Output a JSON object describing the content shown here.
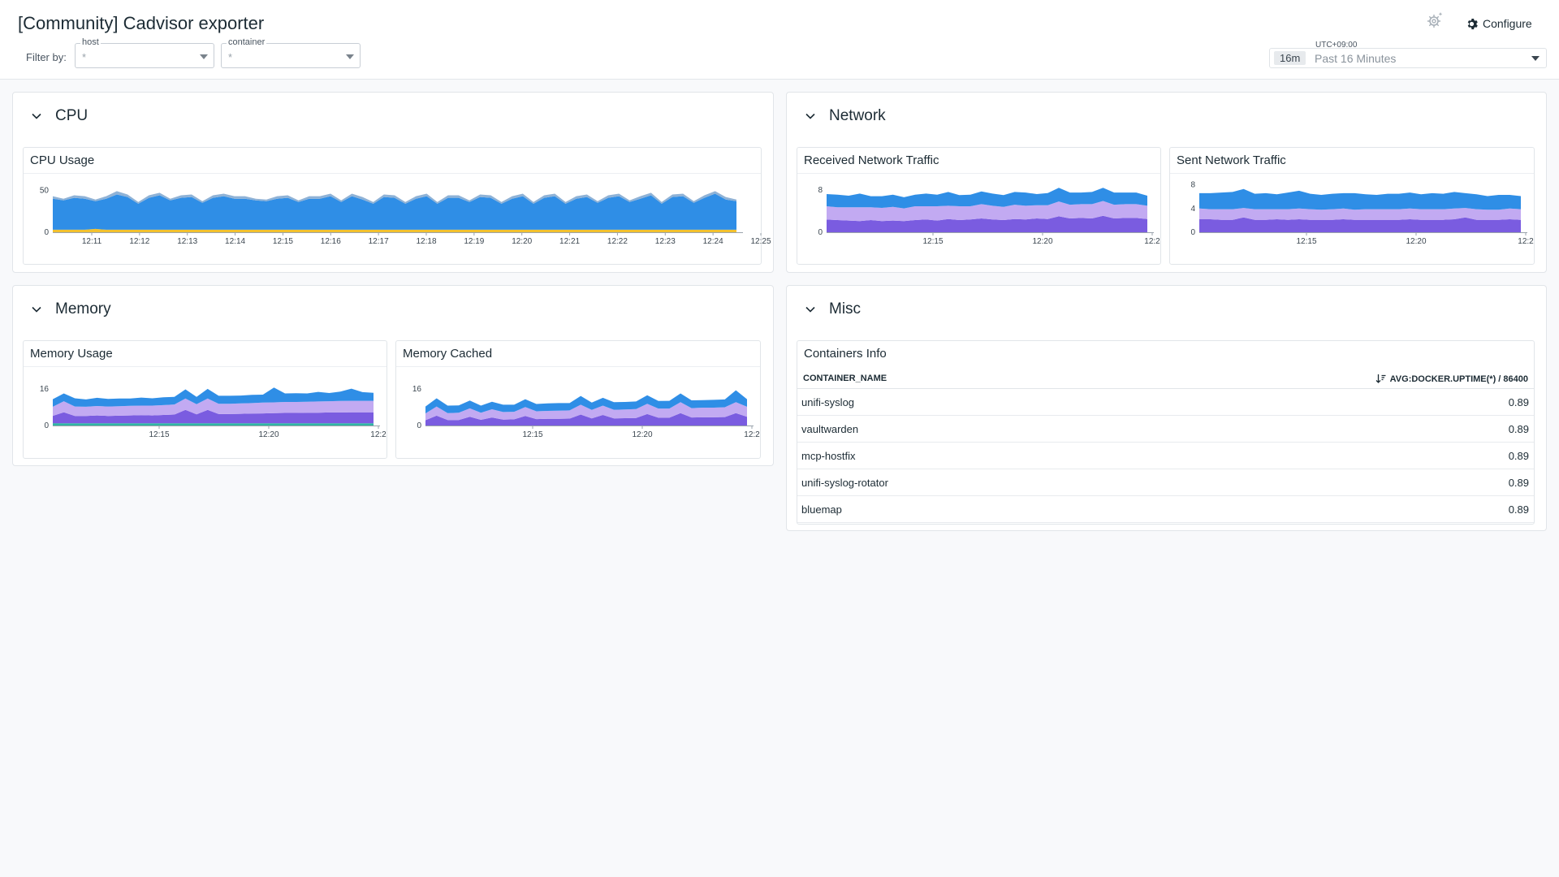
{
  "dashboard": {
    "title": "[Community] Cadvisor exporter"
  },
  "filters": {
    "label": "Filter by:",
    "host": {
      "name": "host",
      "value": "*"
    },
    "container": {
      "name": "container",
      "value": "*"
    }
  },
  "header": {
    "configure_label": "Configure",
    "settings_icon": "gear-icon"
  },
  "timepicker": {
    "timezone": "UTC+09:00",
    "badge": "16m",
    "label": "Past 16 Minutes"
  },
  "groups": {
    "cpu": {
      "title": "CPU"
    },
    "network": {
      "title": "Network"
    },
    "memory": {
      "title": "Memory"
    },
    "misc": {
      "title": "Misc"
    }
  },
  "widgets": {
    "cpu_usage": {
      "title": "CPU Usage"
    },
    "received": {
      "title": "Received Network Traffic"
    },
    "sent": {
      "title": "Sent Network Traffic"
    },
    "mem_usage": {
      "title": "Memory Usage"
    },
    "mem_cached": {
      "title": "Memory Cached"
    },
    "containers": {
      "title": "Containers Info",
      "col_name": "CONTAINER_NAME",
      "col_value": "AVG:DOCKER.UPTIME(*) / 86400",
      "rows": [
        {
          "name": "unifi-syslog",
          "value": "0.89"
        },
        {
          "name": "vaultwarden",
          "value": "0.89"
        },
        {
          "name": "mcp-hostfix",
          "value": "0.89"
        },
        {
          "name": "unifi-syslog-rotator",
          "value": "0.89"
        },
        {
          "name": "bluemap",
          "value": "0.89"
        }
      ]
    }
  },
  "colors": {
    "blue": "#2f8ee6",
    "lavender": "#c2aaf2",
    "purple": "#7a5ce0",
    "yellow": "#f2c12e",
    "teal": "#2fb7a3"
  },
  "chart_data": [
    {
      "id": "cpu_usage",
      "type": "area",
      "title": "CPU Usage",
      "x_ticks": [
        "12:11",
        "12:12",
        "12:13",
        "12:14",
        "12:15",
        "12:16",
        "12:17",
        "12:18",
        "12:19",
        "12:20",
        "12:21",
        "12:22",
        "12:23",
        "12:24",
        "12:25"
      ],
      "y_ticks": [
        "0",
        "50"
      ],
      "ylim": [
        0,
        60
      ],
      "series": [
        {
          "color": "#f2c12e",
          "values": [
            3,
            3,
            3,
            3,
            4,
            3,
            3,
            3,
            3,
            3,
            3,
            3,
            3,
            3,
            3,
            3,
            3,
            3,
            3,
            3,
            3,
            3,
            3,
            3,
            3,
            3,
            3,
            3,
            3,
            3,
            3,
            3,
            3,
            3,
            3,
            3,
            3,
            3,
            3,
            3,
            3,
            3,
            3,
            3,
            3,
            3,
            3,
            3,
            3,
            3,
            3,
            3,
            3,
            3,
            3,
            3,
            3,
            3,
            3,
            3,
            3,
            3,
            3,
            3,
            3
          ]
        },
        {
          "color": "#2f8ee6",
          "values": [
            37,
            35,
            38,
            37,
            33,
            37,
            42,
            39,
            31,
            38,
            41,
            35,
            38,
            39,
            32,
            38,
            40,
            37,
            37,
            35,
            34,
            37,
            38,
            33,
            37,
            37,
            40,
            33,
            40,
            36,
            31,
            39,
            38,
            31,
            37,
            40,
            31,
            38,
            38,
            33,
            39,
            38,
            31,
            37,
            40,
            31,
            38,
            40,
            31,
            37,
            39,
            32,
            38,
            40,
            33,
            37,
            41,
            31,
            39,
            40,
            32,
            38,
            43,
            36,
            34
          ]
        },
        {
          "color": "#8fb2d6",
          "values": [
            3,
            2,
            3,
            3,
            2,
            3,
            4,
            3,
            2,
            3,
            3,
            2,
            3,
            3,
            2,
            3,
            3,
            3,
            3,
            2,
            2,
            3,
            3,
            2,
            3,
            3,
            3,
            2,
            3,
            3,
            2,
            3,
            3,
            2,
            3,
            3,
            2,
            3,
            3,
            2,
            3,
            3,
            2,
            3,
            3,
            2,
            3,
            3,
            2,
            3,
            3,
            2,
            3,
            3,
            2,
            3,
            3,
            2,
            3,
            3,
            2,
            3,
            3,
            3,
            2
          ]
        }
      ]
    },
    {
      "id": "received",
      "type": "area",
      "title": "Received Network Traffic",
      "x_ticks": [
        "12:15",
        "12:20",
        "12:2"
      ],
      "y_ticks": [
        "0",
        "8"
      ],
      "ylim": [
        0,
        9.5
      ],
      "series": [
        {
          "color": "#7a5ce0",
          "values": [
            2.4,
            2.3,
            2.2,
            2.1,
            2.3,
            2.1,
            2.2,
            2.1,
            2.3,
            2.4,
            2.2,
            2.5,
            2.3,
            2.4,
            2.6,
            2.4,
            2.3,
            2.5,
            2.4,
            2.6,
            2.5,
            3.0,
            2.6,
            2.7,
            2.6,
            3.1,
            2.6,
            2.7,
            2.7,
            2.5
          ]
        },
        {
          "color": "#c2aaf2",
          "values": [
            2.5,
            2.4,
            2.5,
            2.6,
            2.4,
            2.5,
            2.6,
            2.4,
            2.6,
            2.5,
            2.7,
            2.5,
            2.6,
            2.5,
            2.7,
            2.6,
            2.5,
            2.7,
            2.6,
            2.5,
            2.6,
            2.8,
            2.6,
            2.6,
            2.7,
            2.8,
            2.6,
            2.6,
            2.6,
            2.5
          ]
        },
        {
          "color": "#2f8ee6",
          "values": [
            2.3,
            2.4,
            2.2,
            2.6,
            2.1,
            2.2,
            2.3,
            2.1,
            2.2,
            2.4,
            2.2,
            2.6,
            2.1,
            2.2,
            2.4,
            2.3,
            2.2,
            2.4,
            2.5,
            2.1,
            2.3,
            2.6,
            2.3,
            2.2,
            2.3,
            2.5,
            2.3,
            2.2,
            2.2,
            1.9
          ]
        }
      ]
    },
    {
      "id": "sent",
      "type": "area",
      "title": "Sent Network Traffic",
      "x_ticks": [
        "12:15",
        "12:20",
        "12:2"
      ],
      "y_ticks": [
        "0",
        "4",
        "8"
      ],
      "ylim": [
        0,
        8.5
      ],
      "series": [
        {
          "color": "#7a5ce0",
          "values": [
            2.2,
            2.2,
            2.1,
            2.1,
            2.5,
            2.1,
            2.1,
            2.2,
            2.1,
            2.2,
            2.1,
            2.1,
            2.1,
            2.2,
            2.1,
            2.1,
            2.1,
            2.1,
            2.1,
            2.2,
            2.1,
            2.1,
            2.1,
            2.2,
            2.5,
            2.1,
            2.1,
            2.1,
            2.2,
            2.1
          ]
        },
        {
          "color": "#c2aaf2",
          "values": [
            1.8,
            1.7,
            1.8,
            1.8,
            1.6,
            1.8,
            1.8,
            1.7,
            1.8,
            1.8,
            1.8,
            1.7,
            1.8,
            1.8,
            1.7,
            1.8,
            1.8,
            1.8,
            1.8,
            1.8,
            1.8,
            1.8,
            1.8,
            1.8,
            1.6,
            1.8,
            1.7,
            1.7,
            1.8,
            1.8
          ]
        },
        {
          "color": "#2f8ee6",
          "values": [
            2.6,
            2.7,
            2.8,
            2.9,
            3.2,
            2.6,
            2.7,
            2.5,
            2.8,
            3.0,
            2.6,
            2.5,
            2.6,
            2.6,
            2.8,
            2.5,
            2.4,
            2.6,
            2.6,
            2.7,
            2.5,
            2.7,
            2.6,
            2.8,
            2.5,
            2.5,
            2.3,
            2.5,
            2.3,
            2.2
          ]
        }
      ]
    },
    {
      "id": "mem_usage",
      "type": "area",
      "title": "Memory Usage",
      "x_ticks": [
        "12:15",
        "12:20",
        "12:2"
      ],
      "y_ticks": [
        "0",
        "16"
      ],
      "ylim": [
        0,
        22
      ],
      "series": [
        {
          "color": "#2fb7a3",
          "values": [
            1,
            1,
            1,
            1,
            1,
            1,
            1,
            1,
            1,
            1,
            1,
            1,
            1,
            1,
            1,
            1,
            1,
            1,
            1,
            1,
            1,
            1,
            1,
            1,
            1,
            1,
            1,
            1,
            1,
            1
          ]
        },
        {
          "color": "#7a5ce0",
          "values": [
            3.2,
            4.8,
            3.2,
            3.2,
            3.4,
            3.2,
            3.3,
            3.4,
            3.5,
            3.4,
            3.6,
            3.8,
            5.8,
            3.9,
            5.8,
            4.0,
            4.0,
            4.1,
            4.2,
            4.3,
            4.4,
            4.5,
            4.5,
            4.6,
            4.6,
            4.7,
            4.7,
            4.8,
            4.8,
            4.8
          ]
        },
        {
          "color": "#c2aaf2",
          "values": [
            4,
            4.8,
            4.1,
            4,
            4.1,
            4.1,
            4.1,
            4.2,
            4.2,
            4.3,
            4.3,
            4.4,
            5,
            4.4,
            5,
            4.5,
            4.5,
            4.6,
            4.6,
            4.7,
            4.7,
            4.8,
            4.8,
            4.8,
            4.9,
            4.9,
            5,
            5,
            5,
            5
          ]
        },
        {
          "color": "#2f8ee6",
          "values": [
            3.3,
            3.4,
            3.6,
            3.2,
            3.6,
            3.3,
            3.4,
            3.2,
            3.5,
            3.2,
            3.4,
            3.3,
            4,
            3.2,
            4.2,
            3.5,
            3.5,
            3.4,
            3.6,
            3.5,
            6.5,
            3.7,
            3.8,
            3.6,
            4.2,
            3.6,
            4.1,
            5.3,
            3.8,
            3.5
          ]
        }
      ]
    },
    {
      "id": "mem_cached",
      "type": "area",
      "title": "Memory Cached",
      "x_ticks": [
        "12:15",
        "12:20",
        "12:2"
      ],
      "y_ticks": [
        "0",
        "16"
      ],
      "ylim": [
        0,
        22
      ],
      "series": [
        {
          "color": "#7a5ce0",
          "values": [
            2.3,
            4.3,
            2.4,
            2.4,
            3.8,
            2.5,
            3.5,
            2.6,
            2.7,
            4.2,
            2.8,
            2.9,
            2.9,
            3.0,
            4.8,
            3.1,
            4.6,
            3.1,
            3.2,
            3.3,
            5.0,
            3.4,
            3.4,
            5.4,
            3.5,
            3.6,
            3.6,
            3.7,
            5.4,
            3.8
          ]
        },
        {
          "color": "#c2aaf2",
          "values": [
            3,
            4,
            3,
            3.2,
            3.7,
            3.1,
            3.6,
            3.3,
            3.3,
            3.9,
            3.4,
            3.5,
            3.6,
            3.6,
            4.3,
            3.7,
            4.1,
            3.8,
            3.8,
            3.9,
            4.5,
            4.0,
            4.0,
            4.8,
            4.1,
            4.2,
            4.2,
            4.3,
            4.8,
            4.4
          ]
        },
        {
          "color": "#2f8ee6",
          "values": [
            3,
            3.6,
            3.3,
            3.2,
            3.4,
            3.1,
            3.3,
            3.2,
            3.1,
            3.4,
            3.2,
            3.3,
            3.3,
            3.2,
            3.8,
            3.2,
            3.4,
            3.3,
            3.3,
            3.3,
            3.7,
            3.3,
            3.4,
            3.8,
            3.4,
            3.3,
            3.4,
            3.4,
            5.2,
            3.3
          ]
        }
      ]
    }
  ]
}
